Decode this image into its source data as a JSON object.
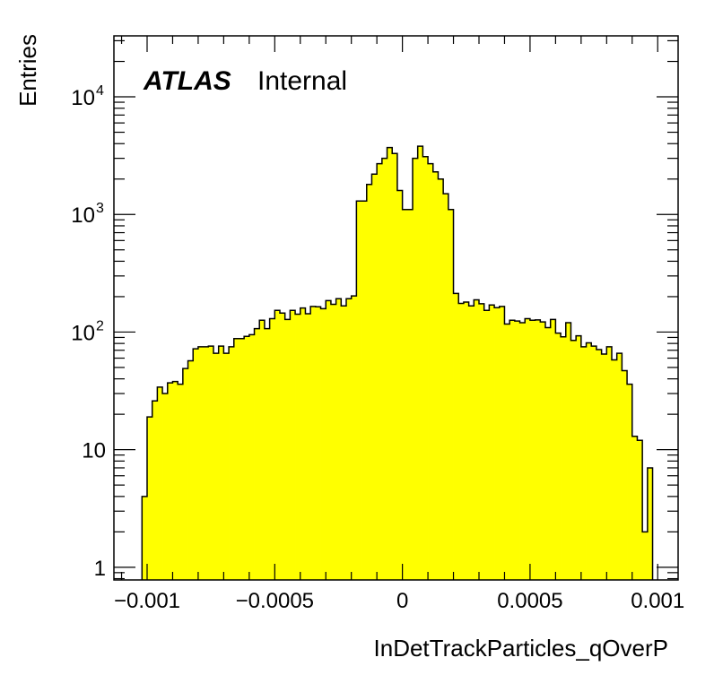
{
  "chart_data": {
    "type": "histogram",
    "title": "",
    "xlabel": "InDetTrackParticles_qOverP",
    "ylabel": "Entries",
    "yscale": "log",
    "xlim": [
      -0.00113,
      0.00108
    ],
    "ylim": [
      0.78,
      33000
    ],
    "legend": "none",
    "grid": false,
    "fill_color": "#ffff00",
    "edge_color": "#000000",
    "annotation": {
      "brand": "ATLAS",
      "status": "Internal"
    },
    "x_ticks": [
      {
        "value": -0.001,
        "label": "−0.001"
      },
      {
        "value": -0.0005,
        "label": "−0.0005"
      },
      {
        "value": 0,
        "label": "0"
      },
      {
        "value": 0.0005,
        "label": "0.0005"
      },
      {
        "value": 0.001,
        "label": "0.001"
      }
    ],
    "y_ticks": [
      {
        "value": 1,
        "label": "1",
        "sup": ""
      },
      {
        "value": 10,
        "label": "10",
        "sup": ""
      },
      {
        "value": 100,
        "label": "10",
        "sup": "2"
      },
      {
        "value": 1000,
        "label": "10",
        "sup": "3"
      },
      {
        "value": 10000,
        "label": "10",
        "sup": "4"
      }
    ],
    "bin_start": -0.00102,
    "bin_width": 2e-05,
    "values": [
      4,
      19,
      26,
      34,
      30,
      37,
      38,
      36,
      49,
      57,
      72,
      75,
      75,
      76,
      66,
      76,
      66,
      75,
      88,
      88,
      92,
      95,
      107,
      126,
      107,
      130,
      153,
      145,
      128,
      153,
      142,
      160,
      143,
      165,
      164,
      158,
      185,
      172,
      192,
      167,
      192,
      203,
      1300,
      1300,
      1800,
      2200,
      2700,
      3000,
      3700,
      3300,
      1600,
      1100,
      1100,
      3000,
      3800,
      3100,
      2700,
      2300,
      2000,
      1500,
      1100,
      213,
      175,
      180,
      167,
      188,
      174,
      153,
      170,
      161,
      165,
      117,
      126,
      124,
      120,
      130,
      126,
      127,
      122,
      109,
      128,
      98,
      91,
      120,
      85,
      93,
      75,
      81,
      76,
      71,
      65,
      75,
      58,
      66,
      47,
      36,
      13,
      12,
      2,
      7
    ]
  }
}
